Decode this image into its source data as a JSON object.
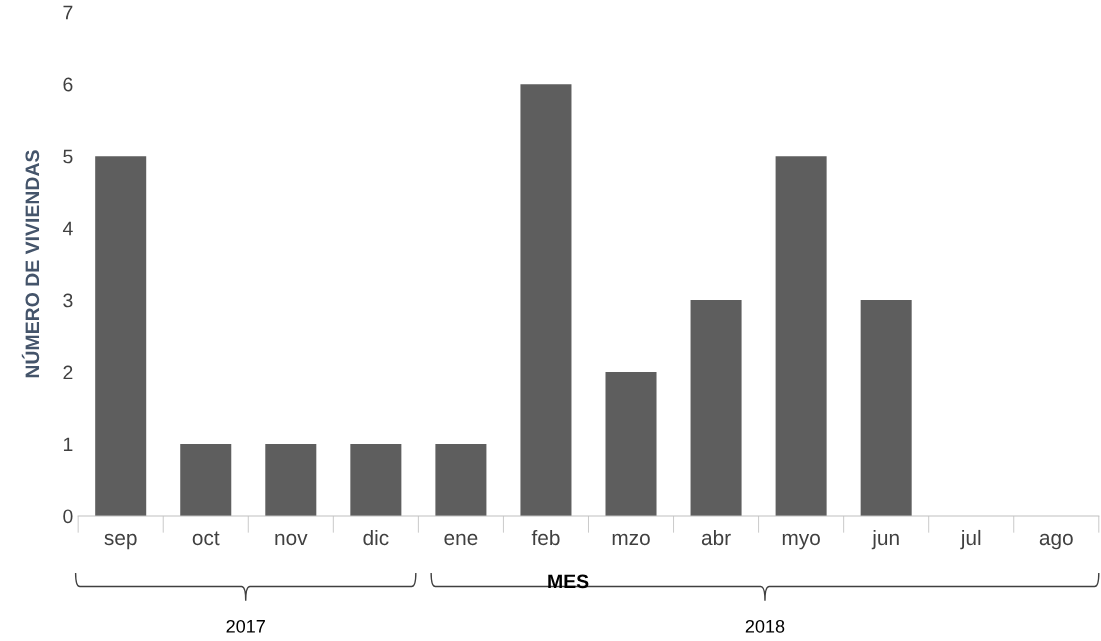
{
  "chart_data": {
    "type": "bar",
    "categories": [
      "sep",
      "oct",
      "nov",
      "dic",
      "ene",
      "feb",
      "mzo",
      "abr",
      "myo",
      "jun",
      "jul",
      "ago"
    ],
    "values": [
      5,
      1,
      1,
      1,
      1,
      6,
      2,
      3,
      5,
      3,
      0,
      0
    ],
    "color": "#5e5e5e",
    "xlabel": "MES",
    "ylabel": "NÚMERO DE VIVIENDAS",
    "ylim": [
      0,
      7
    ],
    "yticks": [
      0,
      1,
      2,
      3,
      4,
      5,
      6,
      7
    ],
    "grid": false,
    "legend": false,
    "annotations": [
      "2017",
      "2018"
    ]
  }
}
